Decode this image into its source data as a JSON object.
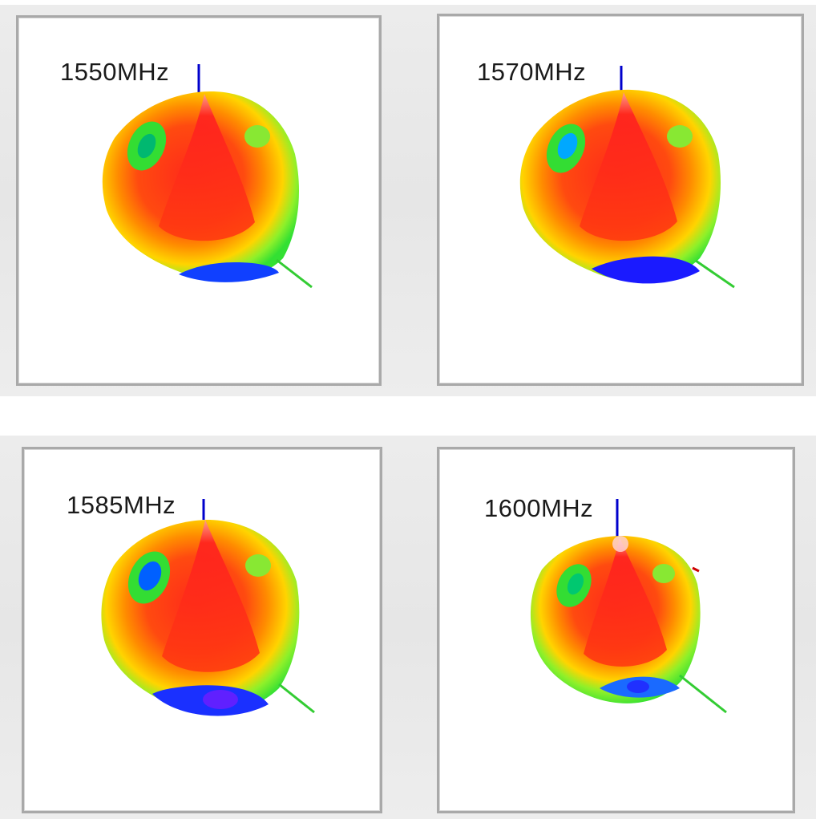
{
  "panels": [
    {
      "label": "1550MHz"
    },
    {
      "label": "1570MHz"
    },
    {
      "label": "1585MHz"
    },
    {
      "label": "1600MHz"
    }
  ],
  "colors": {
    "peak": "#ff2a2a",
    "high": "#ff6a00",
    "mid": "#ffd200",
    "low": "#33e033",
    "lower": "#00d8ff",
    "lowest": "#2020ff",
    "axis_z": "#0000cc",
    "axis_x": "#33cc33"
  }
}
